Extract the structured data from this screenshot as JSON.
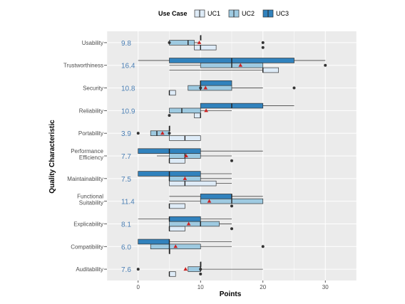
{
  "chart_data": {
    "type": "boxplot",
    "xlabel": "Points",
    "ylabel": "Quality Characteristic",
    "xlim": [
      -5,
      35
    ],
    "xticks": [
      0,
      10,
      20,
      30
    ],
    "grid": true,
    "legend": {
      "title": "Use Case",
      "placement": "top",
      "entries": [
        {
          "name": "UC1",
          "color": "#deebf7"
        },
        {
          "name": "UC2",
          "color": "#9ecae1"
        },
        {
          "name": "UC3",
          "color": "#3182bd"
        }
      ]
    },
    "mean_marker_color": "#cc2222",
    "categories": [
      {
        "label": "Usability",
        "mean_label": "9.8",
        "mean": 9.8,
        "boxes": [
          {
            "series": "UC1",
            "q1": 9,
            "median": 10,
            "q3": 12.5,
            "wmin": 9,
            "wmax": 12.5,
            "outliers": [
              20
            ]
          },
          {
            "series": "UC2",
            "q1": 5,
            "median": 8,
            "q3": 9,
            "wmin": 5,
            "wmax": 10,
            "outliers": [
              5,
              20
            ]
          },
          {
            "series": "UC3",
            "q1": 10,
            "median": 10,
            "q3": 10,
            "wmin": 10,
            "wmax": 10,
            "outliers": []
          }
        ]
      },
      {
        "label": "Trustworthiness",
        "mean_label": "16.4",
        "mean": 16.4,
        "boxes": [
          {
            "series": "UC1",
            "q1": 20,
            "median": 20,
            "q3": 22.5,
            "wmin": 5,
            "wmax": 22.5,
            "outliers": []
          },
          {
            "series": "UC2",
            "q1": 10,
            "median": 15,
            "q3": 20,
            "wmin": 5,
            "wmax": 20,
            "outliers": [
              30
            ]
          },
          {
            "series": "UC3",
            "q1": 5,
            "median": 15,
            "q3": 25,
            "wmin": 0,
            "wmax": 30,
            "outliers": []
          }
        ]
      },
      {
        "label": "Security",
        "mean_label": "10.8",
        "mean": 10.8,
        "boxes": [
          {
            "series": "UC1",
            "q1": 5,
            "median": 5,
            "q3": 6,
            "wmin": 5,
            "wmax": 6,
            "outliers": []
          },
          {
            "series": "UC2",
            "q1": 8,
            "median": 10,
            "q3": 15,
            "wmin": 8,
            "wmax": 20,
            "outliers": [
              10,
              25
            ]
          },
          {
            "series": "UC3",
            "q1": 10,
            "median": 10,
            "q3": 15,
            "wmin": 10,
            "wmax": 15,
            "outliers": []
          }
        ]
      },
      {
        "label": "Reliability",
        "mean_label": "10.9",
        "mean": 10.9,
        "boxes": [
          {
            "series": "UC1",
            "q1": 9,
            "median": 10,
            "q3": 10,
            "wmin": 9,
            "wmax": 10,
            "outliers": [
              5
            ]
          },
          {
            "series": "UC2",
            "q1": 5,
            "median": 7,
            "q3": 10,
            "wmin": 5,
            "wmax": 15,
            "outliers": []
          },
          {
            "series": "UC3",
            "q1": 10,
            "median": 15,
            "q3": 20,
            "wmin": 10,
            "wmax": 25,
            "outliers": []
          }
        ]
      },
      {
        "label": "Portability",
        "mean_label": "3.9",
        "mean": 3.9,
        "boxes": [
          {
            "series": "UC1",
            "q1": 5,
            "median": 7.5,
            "q3": 10,
            "wmin": 5,
            "wmax": 10,
            "outliers": []
          },
          {
            "series": "UC2",
            "q1": 2,
            "median": 3,
            "q3": 5,
            "wmin": 2,
            "wmax": 5,
            "outliers": [
              0,
              5
            ]
          },
          {
            "series": "UC3",
            "q1": 5,
            "median": 5,
            "q3": 5,
            "wmin": 5,
            "wmax": 5,
            "outliers": []
          }
        ]
      },
      {
        "label": "Performance Efficiency",
        "mean_label": "7.7",
        "mean": 7.7,
        "boxes": [
          {
            "series": "UC1",
            "q1": 5,
            "median": 5,
            "q3": 7.5,
            "wmin": 5,
            "wmax": 7.5,
            "outliers": [
              15
            ]
          },
          {
            "series": "UC2",
            "q1": 5,
            "median": 7.5,
            "q3": 10,
            "wmin": 3,
            "wmax": 15,
            "outliers": []
          },
          {
            "series": "UC3",
            "q1": 0,
            "median": 5,
            "q3": 10,
            "wmin": 0,
            "wmax": 20,
            "outliers": []
          }
        ]
      },
      {
        "label": "Maintainability",
        "mean_label": "7.5",
        "mean": 7.5,
        "boxes": [
          {
            "series": "UC1",
            "q1": 5,
            "median": 7.5,
            "q3": 12.5,
            "wmin": 5,
            "wmax": 15,
            "outliers": []
          },
          {
            "series": "UC2",
            "q1": 5,
            "median": 5,
            "q3": 10,
            "wmin": 5,
            "wmax": 15,
            "outliers": []
          },
          {
            "series": "UC3",
            "q1": 0,
            "median": 5,
            "q3": 10,
            "wmin": 0,
            "wmax": 15,
            "outliers": []
          }
        ]
      },
      {
        "label": "Functional Suitability",
        "mean_label": "11.4",
        "mean": 11.4,
        "boxes": [
          {
            "series": "UC1",
            "q1": 5,
            "median": 5,
            "q3": 7.5,
            "wmin": 5,
            "wmax": 7.5,
            "outliers": [
              15
            ]
          },
          {
            "series": "UC2",
            "q1": 10,
            "median": 15,
            "q3": 20,
            "wmin": 5,
            "wmax": 20,
            "outliers": []
          },
          {
            "series": "UC3",
            "q1": 10,
            "median": 15,
            "q3": 15,
            "wmin": 5,
            "wmax": 20,
            "outliers": []
          }
        ]
      },
      {
        "label": "Explicability",
        "mean_label": "8.1",
        "mean": 8.1,
        "boxes": [
          {
            "series": "UC1",
            "q1": 5,
            "median": 5,
            "q3": 7.5,
            "wmin": 5,
            "wmax": 7.5,
            "outliers": [
              15
            ]
          },
          {
            "series": "UC2",
            "q1": 5,
            "median": 10,
            "q3": 13,
            "wmin": 5,
            "wmax": 15,
            "outliers": []
          },
          {
            "series": "UC3",
            "q1": 5,
            "median": 5,
            "q3": 10,
            "wmin": 0,
            "wmax": 15,
            "outliers": []
          }
        ]
      },
      {
        "label": "Compatibility",
        "mean_label": "6.0",
        "mean": 6.0,
        "boxes": [
          {
            "series": "UC1",
            "q1": 5,
            "median": 5,
            "q3": 5,
            "wmin": 5,
            "wmax": 5,
            "outliers": []
          },
          {
            "series": "UC2",
            "q1": 2,
            "median": 5,
            "q3": 10,
            "wmin": 2,
            "wmax": 15,
            "outliers": [
              20
            ]
          },
          {
            "series": "UC3",
            "q1": 0,
            "median": 5,
            "q3": 5,
            "wmin": 0,
            "wmax": 15,
            "outliers": []
          }
        ]
      },
      {
        "label": "Auditability",
        "mean_label": "7.6",
        "mean": 7.6,
        "boxes": [
          {
            "series": "UC1",
            "q1": 5,
            "median": 5,
            "q3": 6,
            "wmin": 5,
            "wmax": 6,
            "outliers": [
              10
            ]
          },
          {
            "series": "UC2",
            "q1": 8,
            "median": 10,
            "q3": 10,
            "wmin": 8,
            "wmax": 20,
            "outliers": [
              0,
              10
            ]
          },
          {
            "series": "UC3",
            "q1": 10,
            "median": 10,
            "q3": 10,
            "wmin": 10,
            "wmax": 10,
            "outliers": []
          }
        ]
      }
    ]
  }
}
